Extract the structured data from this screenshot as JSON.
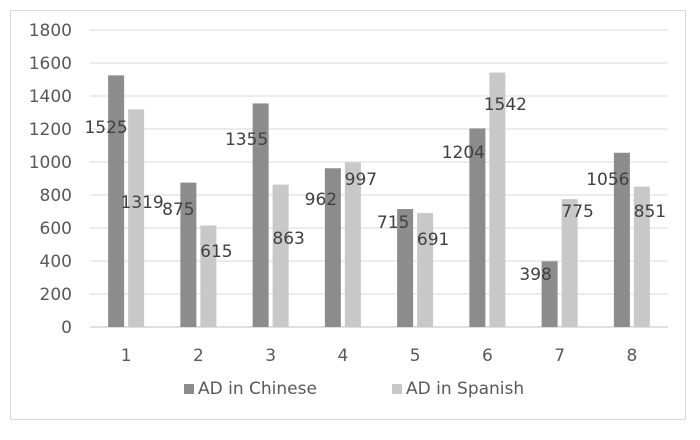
{
  "chart_data": {
    "type": "bar",
    "categories": [
      "1",
      "2",
      "3",
      "4",
      "5",
      "6",
      "7",
      "8"
    ],
    "series": [
      {
        "name": "AD in Chinese",
        "values": [
          1525,
          875,
          1355,
          962,
          715,
          1204,
          398,
          1056
        ],
        "color": "#8c8c8c"
      },
      {
        "name": "AD in Spanish",
        "values": [
          1319,
          615,
          863,
          997,
          691,
          1542,
          775,
          851
        ],
        "color": "#c8c8c8"
      }
    ],
    "ylim": [
      0,
      1800
    ],
    "yticks": [
      0,
      200,
      400,
      600,
      800,
      1000,
      1200,
      1400,
      1600,
      1800
    ],
    "grid": true,
    "legend": "bottom",
    "title": "",
    "xlabel": "",
    "ylabel": ""
  }
}
